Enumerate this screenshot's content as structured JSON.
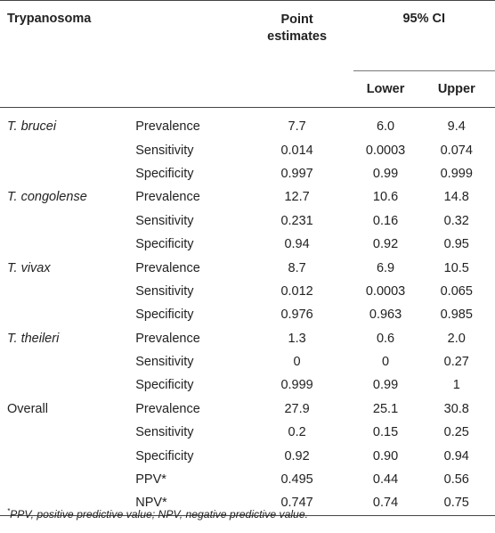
{
  "header": {
    "trypanosoma": "Trypanosoma",
    "point_line1": "Point",
    "point_line2": "estimates",
    "ci": "95% CI",
    "lower": "Lower",
    "upper": "Upper"
  },
  "groups": [
    {
      "name": "T. brucei",
      "italic": true,
      "rows": [
        {
          "measure": "Prevalence",
          "point": "7.7",
          "lower": "6.0",
          "upper": "9.4"
        },
        {
          "measure": "Sensitivity",
          "point": "0.014",
          "lower": "0.0003",
          "upper": "0.074"
        },
        {
          "measure": "Specificity",
          "point": "0.997",
          "lower": "0.99",
          "upper": "0.999"
        }
      ]
    },
    {
      "name": "T. congolense",
      "italic": true,
      "rows": [
        {
          "measure": "Prevalence",
          "point": "12.7",
          "lower": "10.6",
          "upper": "14.8"
        },
        {
          "measure": "Sensitivity",
          "point": "0.231",
          "lower": "0.16",
          "upper": "0.32"
        },
        {
          "measure": "Specificity",
          "point": "0.94",
          "lower": "0.92",
          "upper": "0.95"
        }
      ]
    },
    {
      "name": "T. vivax",
      "italic": true,
      "rows": [
        {
          "measure": "Prevalence",
          "point": "8.7",
          "lower": "6.9",
          "upper": "10.5"
        },
        {
          "measure": "Sensitivity",
          "point": "0.012",
          "lower": "0.0003",
          "upper": "0.065"
        },
        {
          "measure": "Specificity",
          "point": "0.976",
          "lower": "0.963",
          "upper": "0.985"
        }
      ]
    },
    {
      "name": "T. theileri",
      "italic": true,
      "rows": [
        {
          "measure": "Prevalence",
          "point": "1.3",
          "lower": "0.6",
          "upper": "2.0"
        },
        {
          "measure": "Sensitivity",
          "point": "0",
          "lower": "0",
          "upper": "0.27"
        },
        {
          "measure": "Specificity",
          "point": "0.999",
          "lower": "0.99",
          "upper": "1"
        }
      ]
    },
    {
      "name": "Overall",
      "italic": false,
      "rows": [
        {
          "measure": "Prevalence",
          "point": "27.9",
          "lower": "25.1",
          "upper": "30.8"
        },
        {
          "measure": "Sensitivity",
          "point": "0.2",
          "lower": "0.15",
          "upper": "0.25"
        },
        {
          "measure": "Specificity",
          "point": "0.92",
          "lower": "0.90",
          "upper": "0.94"
        },
        {
          "measure": "PPV*",
          "point": "0.495",
          "lower": "0.44",
          "upper": "0.56"
        },
        {
          "measure": "NPV*",
          "point": "0.747",
          "lower": "0.74",
          "upper": "0.75"
        }
      ]
    }
  ],
  "footnote": {
    "mark": "*",
    "text": "PPV, positive predictive value; NPV, negative predictive value."
  }
}
